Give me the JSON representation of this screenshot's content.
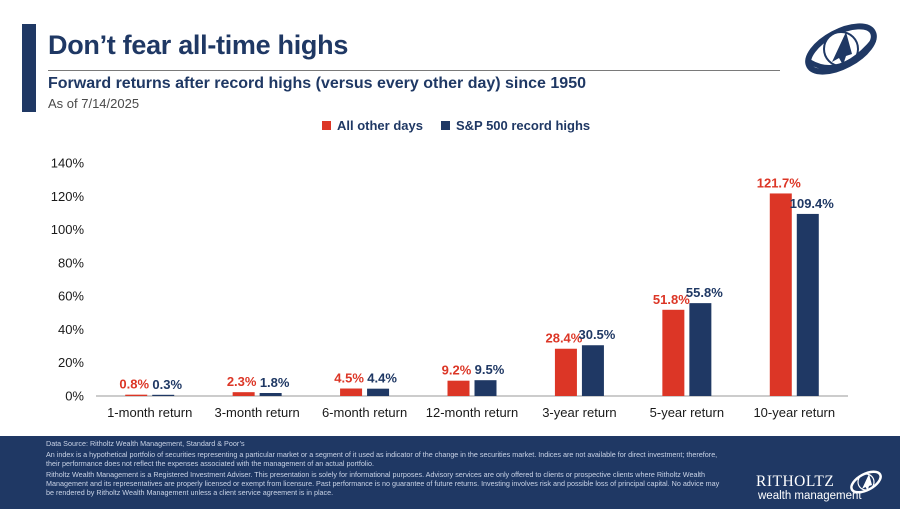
{
  "header": {
    "title": "Don’t fear all-time highs",
    "subtitle": "Forward returns after record highs (versus every other day) since 1950",
    "as_of": "As of 7/14/2025"
  },
  "colors": {
    "navy": "#1f3864",
    "red": "#dc3626"
  },
  "chart_data": {
    "type": "bar",
    "categories": [
      "1-month return",
      "3-month return",
      "6-month return",
      "12-month return",
      "3-year return",
      "5-year return",
      "10-year return"
    ],
    "series": [
      {
        "name": "All other days",
        "color": "#dc3626",
        "values": [
          0.8,
          2.3,
          4.5,
          9.2,
          28.4,
          51.8,
          121.7
        ],
        "labels": [
          "0.8%",
          "2.3%",
          "4.5%",
          "9.2%",
          "28.4%",
          "51.8%",
          "121.7%"
        ]
      },
      {
        "name": "S&P 500 record highs",
        "color": "#1f3864",
        "values": [
          0.3,
          1.8,
          4.4,
          9.5,
          30.5,
          55.8,
          109.4
        ],
        "labels": [
          "0.3%",
          "1.8%",
          "4.4%",
          "9.5%",
          "30.5%",
          "55.8%",
          "109.4%"
        ]
      }
    ],
    "y_ticks": [
      "0%",
      "20%",
      "40%",
      "60%",
      "80%",
      "100%",
      "120%",
      "140%"
    ],
    "ylim": [
      0,
      140
    ],
    "grid": false,
    "legend_position": "top"
  },
  "footer": {
    "source": "Data Source: Ritholtz Wealth Management, Standard & Poor’s",
    "disclaimer_index": "An index is a hypothetical portfolio of securities representing a particular market or a segment of it used as indicator of the change in the securities market. Indices are not available for direct investment; therefore, their performance does not reflect the expenses associated with the management of an actual portfolio.",
    "disclaimer_adviser": "Ritholtz Wealth Management is a Registered Investment Adviser. This presentation is solely for informational purposes. Advisory services are only offered to clients or prospective clients where Ritholtz Wealth Management and its representatives are properly licensed or exempt from licensure. Past performance is no guarantee of future returns. Investing involves risk and possible loss of principal capital. No advice may be rendered by Ritholtz Wealth Management unless a client service agreement is in place.",
    "brand_name": "RITHOLTZ",
    "brand_sub": "wealth management"
  },
  "logo_icon": "rocket-orbit-icon"
}
